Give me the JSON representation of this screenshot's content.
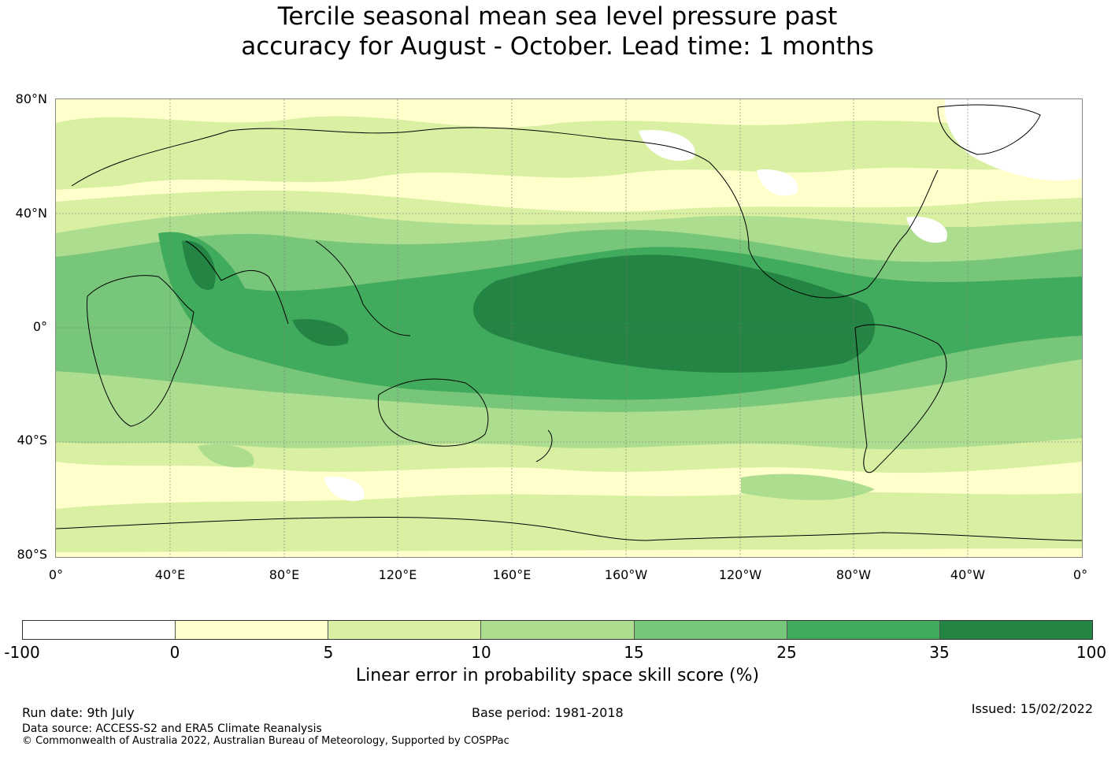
{
  "title_line1": "Tercile seasonal mean sea level pressure past",
  "title_line2": "accuracy for August - October. Lead time: 1 months",
  "map": {
    "lat_labels": [
      "80°N",
      "40°N",
      "0°",
      "40°S",
      "80°S"
    ],
    "lon_labels": [
      "0°",
      "40°E",
      "80°E",
      "120°E",
      "160°E",
      "160°W",
      "120°W",
      "80°W",
      "40°W",
      "0°"
    ]
  },
  "legend": {
    "ticks": [
      "-100",
      "0",
      "5",
      "10",
      "15",
      "25",
      "35",
      "100"
    ],
    "colors": [
      "#ffffff",
      "#ffffcc",
      "#d9f0a3",
      "#addd8e",
      "#78c679",
      "#41ab5d",
      "#238443"
    ],
    "label": "Linear error in probability space skill score (%)"
  },
  "footer": {
    "run_date": "Run date: 9th July",
    "base_period": "Base period: 1981-2018",
    "issued": "Issued: 15/02/2022",
    "data_source": "Data source: ACCESS-S2 and ERA5 Climate Reanalysis",
    "copyright": "© Commonwealth of Australia 2022, Australian Bureau of Meteorology, Supported by COSPPac"
  }
}
